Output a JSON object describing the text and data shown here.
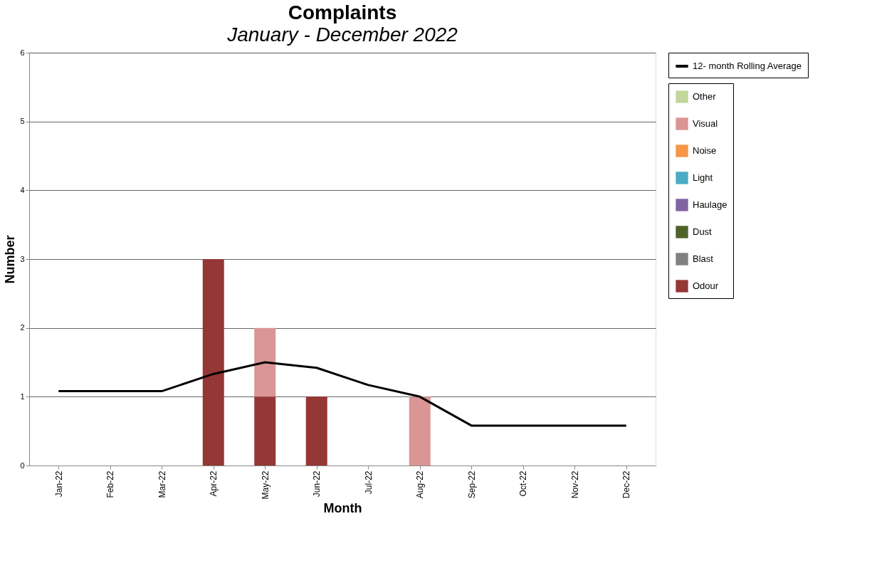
{
  "chart_data": {
    "type": "bar",
    "title": "Complaints",
    "subtitle": "January - December 2022",
    "xlabel": "Month",
    "ylabel": "Number",
    "categories": [
      "Jan-22",
      "Feb-22",
      "Mar-22",
      "Apr-22",
      "May-22",
      "Jun-22",
      "Jul-22",
      "Aug-22",
      "Sep-22",
      "Oct-22",
      "Nov-22",
      "Dec-22"
    ],
    "stacked": true,
    "series": [
      {
        "name": "Odour",
        "color": "#953735",
        "values": [
          0,
          0,
          0,
          3,
          1,
          1,
          0,
          0,
          0,
          0,
          0,
          0
        ]
      },
      {
        "name": "Blast",
        "color": "#808080",
        "values": [
          0,
          0,
          0,
          0,
          0,
          0,
          0,
          0,
          0,
          0,
          0,
          0
        ]
      },
      {
        "name": "Dust",
        "color": "#4f6228",
        "values": [
          0,
          0,
          0,
          0,
          0,
          0,
          0,
          0,
          0,
          0,
          0,
          0
        ]
      },
      {
        "name": "Haulage",
        "color": "#8064a2",
        "values": [
          0,
          0,
          0,
          0,
          0,
          0,
          0,
          0,
          0,
          0,
          0,
          0
        ]
      },
      {
        "name": "Light",
        "color": "#4bacc6",
        "values": [
          0,
          0,
          0,
          0,
          0,
          0,
          0,
          0,
          0,
          0,
          0,
          0
        ]
      },
      {
        "name": "Noise",
        "color": "#f79646",
        "values": [
          0,
          0,
          0,
          0,
          0,
          0,
          0,
          0,
          0,
          0,
          0,
          0
        ]
      },
      {
        "name": "Visual",
        "color": "#d99694",
        "values": [
          0,
          0,
          0,
          0,
          1,
          0,
          0,
          1,
          0,
          0,
          0,
          0
        ]
      },
      {
        "name": "Other",
        "color": "#c3d69b",
        "values": [
          0,
          0,
          0,
          0,
          0,
          0,
          0,
          0,
          0,
          0,
          0,
          0
        ]
      },
      {
        "name": "12- month Rolling Average",
        "type": "line",
        "color": "#000000",
        "values": [
          1.08,
          1.08,
          1.08,
          1.33,
          1.5,
          1.42,
          1.17,
          1.0,
          0.58,
          0.58,
          0.58,
          0.58
        ]
      }
    ],
    "ylim": [
      0,
      6
    ],
    "yticks": [
      0,
      1,
      2,
      3,
      4,
      5,
      6
    ],
    "grid": "y",
    "legend": "right",
    "marker": "none"
  }
}
